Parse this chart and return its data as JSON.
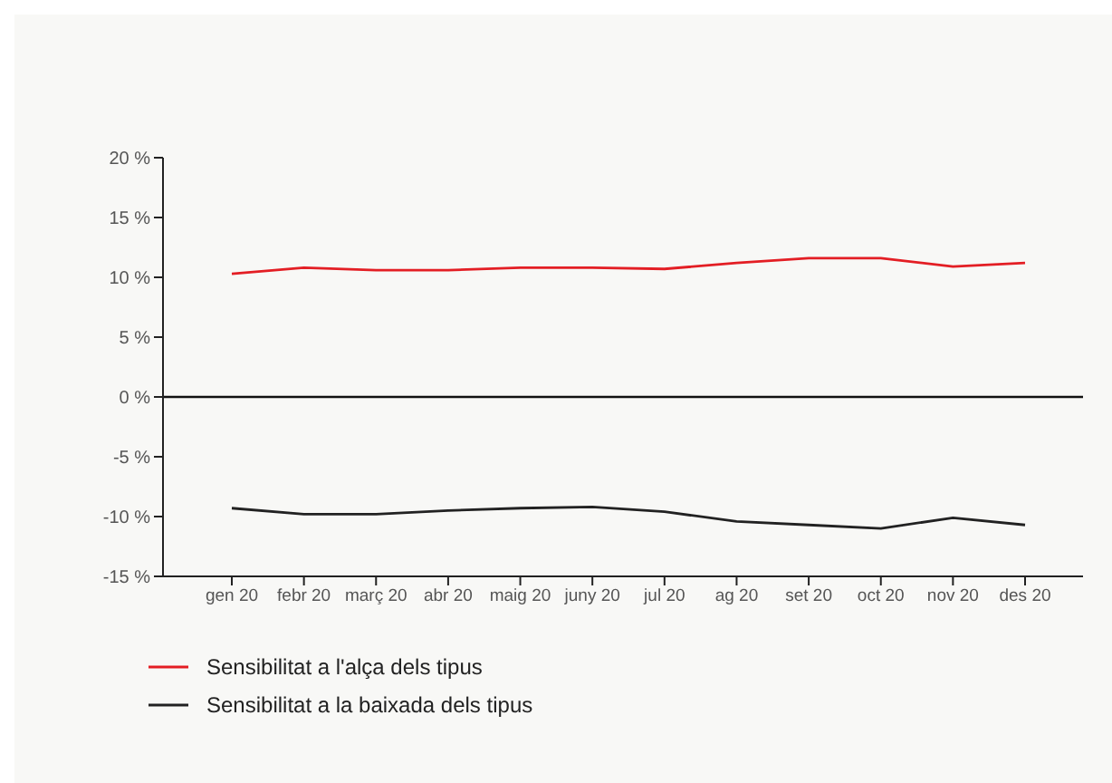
{
  "chart_data": {
    "type": "line",
    "categories": [
      "gen 20",
      "febr 20",
      "març 20",
      "abr 20",
      "maig 20",
      "juny 20",
      "jul 20",
      "ag 20",
      "set 20",
      "oct 20",
      "nov 20",
      "des 20"
    ],
    "ylim": [
      -15,
      20
    ],
    "yticks": [
      {
        "value": -15,
        "label": "-15 %"
      },
      {
        "value": -10,
        "label": "-10 %"
      },
      {
        "value": -5,
        "label": "-5 %"
      },
      {
        "value": 0,
        "label": "0 %"
      },
      {
        "value": 5,
        "label": "5 %"
      },
      {
        "value": 10,
        "label": "10 %"
      },
      {
        "value": 15,
        "label": "15 %"
      },
      {
        "value": 20,
        "label": "20 %"
      }
    ],
    "series": [
      {
        "name": "Sensibilitat a l'alça dels tipus",
        "color": "#e31e24",
        "values": [
          10.3,
          10.8,
          10.6,
          10.6,
          10.8,
          10.8,
          10.7,
          11.2,
          11.6,
          11.6,
          10.9,
          11.2
        ]
      },
      {
        "name": "Sensibilitat a la baixada dels tipus",
        "color": "#222222",
        "values": [
          -9.3,
          -9.8,
          -9.8,
          -9.5,
          -9.3,
          -9.2,
          -9.6,
          -10.4,
          -10.7,
          -11,
          -10.1,
          -10.7
        ]
      }
    ],
    "ref_lines": [
      {
        "axis": "y",
        "value": 0,
        "color": "#111111"
      }
    ],
    "legend": "bottom left",
    "marker": "none",
    "line_style": "solid"
  }
}
